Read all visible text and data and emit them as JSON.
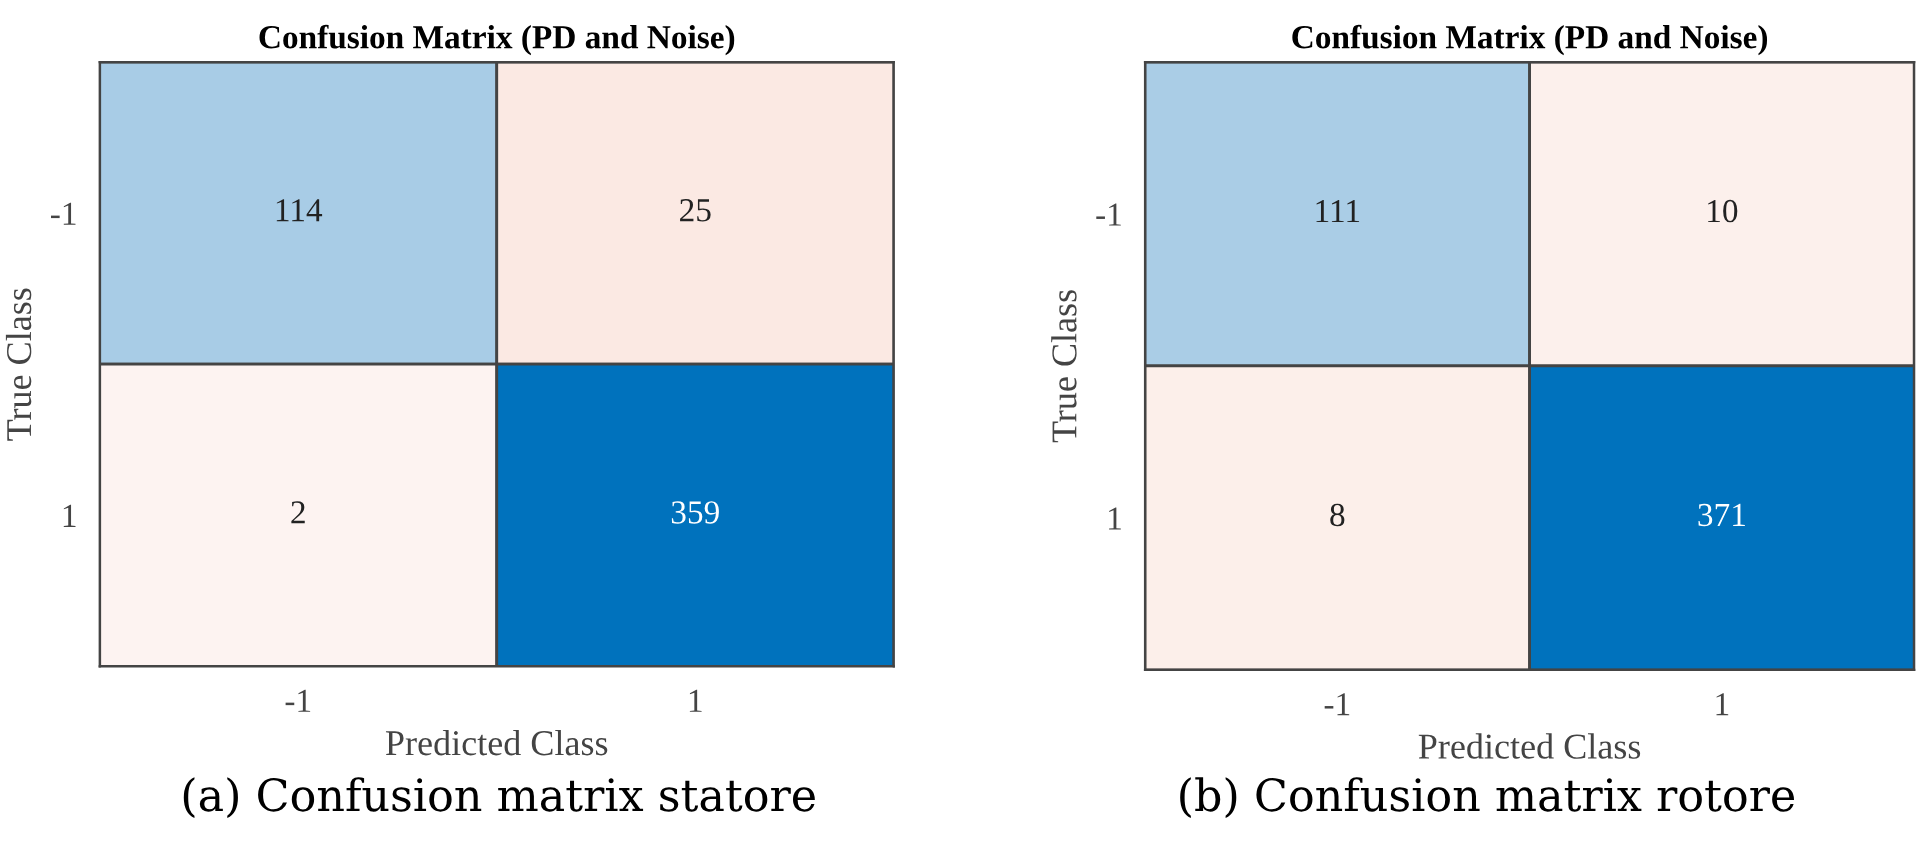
{
  "chart_data": [
    {
      "type": "heatmap",
      "title": "Confusion Matrix (PD and Noise)",
      "xlabel": "Predicted Class",
      "ylabel": "True Class",
      "categories": [
        "-1",
        "1"
      ],
      "y_categories": [
        "-1",
        "1"
      ],
      "cells": [
        [
          114,
          25
        ],
        [
          2,
          359
        ]
      ],
      "colors": [
        [
          "#a8cce6",
          "#fbe9e3"
        ],
        [
          "#fdf3f1",
          "#0072bd"
        ]
      ],
      "data_labels": true,
      "annotations": [
        "(a) Confusion matrix statore"
      ]
    },
    {
      "type": "heatmap",
      "title": "Confusion Matrix (PD and Noise)",
      "xlabel": "Predicted Class",
      "ylabel": "True Class",
      "categories": [
        "-1",
        "1"
      ],
      "y_categories": [
        "-1",
        "1"
      ],
      "cells": [
        [
          111,
          10
        ],
        [
          8,
          371
        ]
      ],
      "colors": [
        [
          "#aacde6",
          "#fcf0ec"
        ],
        [
          "#fcefea",
          "#0072bd"
        ]
      ],
      "data_labels": true,
      "annotations": [
        "(b) Confusion matrix rotore"
      ]
    }
  ]
}
